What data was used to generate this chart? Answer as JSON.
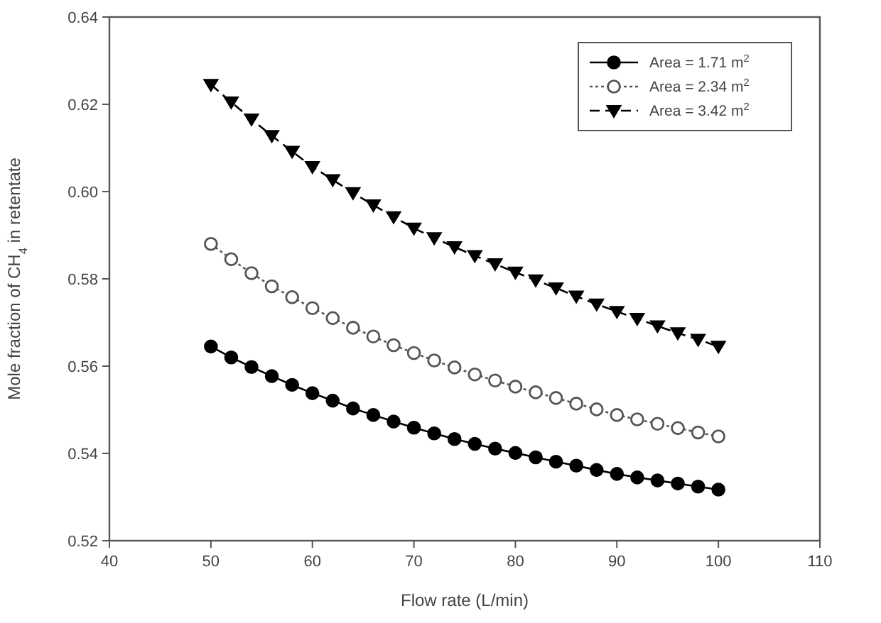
{
  "chart_data": {
    "type": "line",
    "xlabel": "Flow rate (L/min)",
    "ylabel": "Mole fraction of CH$_{4}$ in retentate",
    "x": [
      50,
      52,
      54,
      56,
      58,
      60,
      62,
      64,
      66,
      68,
      70,
      72,
      74,
      76,
      78,
      80,
      82,
      84,
      86,
      88,
      90,
      92,
      94,
      96,
      98,
      100
    ],
    "xlim": [
      40,
      110
    ],
    "xticks": [
      40,
      50,
      60,
      70,
      80,
      90,
      100,
      110
    ],
    "ylim": [
      0.52,
      0.64
    ],
    "yticks": [
      {
        "value": 0.52,
        "label": "0.52"
      },
      {
        "value": 0.54,
        "label": "0.54"
      },
      {
        "value": 0.56,
        "label": "0.56"
      },
      {
        "value": 0.58,
        "label": "0.58"
      },
      {
        "value": 0.6,
        "label": "0.60"
      },
      {
        "value": 0.62,
        "label": "0.62"
      },
      {
        "value": 0.64,
        "label": "0.64"
      }
    ],
    "grid": false,
    "legend": "top right",
    "series": [
      {
        "name": "Area = 1.71 m$^{2}$",
        "color": "#000000",
        "marker": "circle",
        "line_style": "solid",
        "values": [
          0.5645,
          0.562,
          0.5598,
          0.5577,
          0.5557,
          0.5538,
          0.5521,
          0.5503,
          0.5488,
          0.5473,
          0.5459,
          0.5446,
          0.5433,
          0.5422,
          0.5411,
          0.5401,
          0.5391,
          0.5381,
          0.5372,
          0.5362,
          0.5353,
          0.5345,
          0.5338,
          0.5331,
          0.5324,
          0.5317
        ]
      },
      {
        "name": "Area = 2.34 m$^{2}$",
        "color": "#555555",
        "marker": "circle",
        "line_style": "dotted",
        "values": [
          0.588,
          0.5845,
          0.5813,
          0.5783,
          0.5758,
          0.5733,
          0.571,
          0.5688,
          0.5668,
          0.5648,
          0.563,
          0.5613,
          0.5597,
          0.5581,
          0.5567,
          0.5553,
          0.554,
          0.5527,
          0.5514,
          0.5501,
          0.5488,
          0.5478,
          0.5468,
          0.5458,
          0.5448,
          0.5439
        ]
      },
      {
        "name": "Area = 3.42 m$^{2}$",
        "color": "#000000",
        "marker": "triangle",
        "line_style": "dashed",
        "values": [
          0.6245,
          0.6205,
          0.6166,
          0.6128,
          0.6092,
          0.6057,
          0.6027,
          0.5997,
          0.5969,
          0.5942,
          0.5916,
          0.5894,
          0.5873,
          0.5853,
          0.5834,
          0.5815,
          0.5797,
          0.5779,
          0.576,
          0.5742,
          0.5725,
          0.5709,
          0.5692,
          0.5676,
          0.5661,
          0.5645
        ]
      }
    ]
  }
}
